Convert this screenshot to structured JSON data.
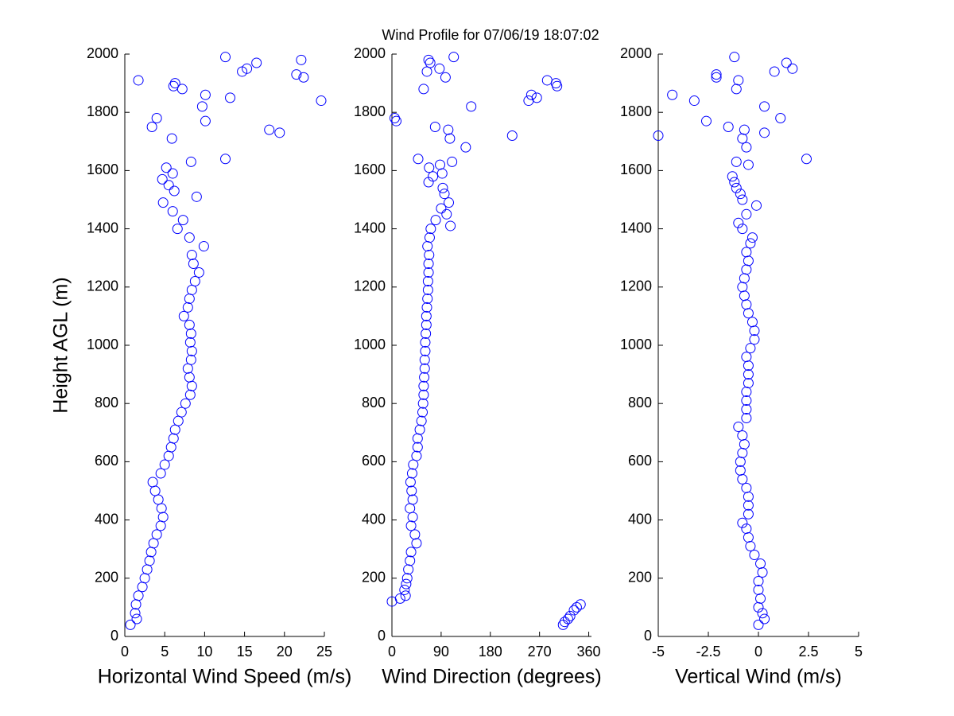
{
  "chart_data": [
    {
      "type": "scatter",
      "title": "Wind Profile for  07/06/19 18:07:02",
      "x_label": "Horizontal Wind Speed (m/s)",
      "y_label": "Height AGL (m)",
      "color": "#0000ff",
      "xlim": [
        0,
        25
      ],
      "xticks": [
        0,
        5,
        10,
        15,
        20,
        25
      ],
      "ylim": [
        0,
        2000
      ],
      "yticks": [
        0,
        200,
        400,
        600,
        800,
        1000,
        1200,
        1400,
        1600,
        1800,
        2000
      ],
      "x": [
        0.7,
        1.5,
        1.3,
        1.4,
        1.7,
        2.2,
        2.5,
        2.8,
        3.1,
        3.3,
        3.6,
        4.0,
        4.5,
        4.8,
        4.6,
        4.2,
        3.8,
        3.5,
        4.5,
        5.0,
        5.5,
        5.8,
        6.1,
        6.3,
        6.7,
        7.1,
        7.6,
        8.2,
        8.4,
        8.1,
        7.9,
        8.3,
        8.4,
        8.2,
        8.3,
        8.1,
        7.4,
        7.9,
        8.1,
        8.4,
        8.8,
        9.3,
        8.6,
        8.4,
        9.9,
        8.1,
        6.6,
        7.3,
        6.0,
        4.8,
        9.0,
        6.2,
        5.5,
        4.7,
        6.0,
        5.2,
        8.3,
        12.6,
        5.9,
        19.4,
        18.1,
        3.4,
        10.1,
        4.0,
        9.7,
        24.6,
        13.2,
        10.1,
        7.2,
        6.1,
        6.3,
        1.7,
        22.4,
        21.5,
        14.7,
        15.3,
        16.5,
        22.1,
        12.6
      ],
      "values": [
        40,
        60,
        80,
        110,
        140,
        170,
        200,
        230,
        260,
        290,
        320,
        350,
        380,
        410,
        440,
        470,
        500,
        530,
        560,
        590,
        620,
        650,
        680,
        710,
        740,
        770,
        800,
        830,
        860,
        890,
        920,
        950,
        980,
        1010,
        1040,
        1070,
        1100,
        1130,
        1160,
        1190,
        1220,
        1250,
        1280,
        1310,
        1340,
        1370,
        1400,
        1430,
        1460,
        1490,
        1510,
        1530,
        1550,
        1570,
        1590,
        1610,
        1630,
        1640,
        1710,
        1730,
        1740,
        1750,
        1770,
        1780,
        1820,
        1840,
        1850,
        1860,
        1880,
        1890,
        1900,
        1910,
        1920,
        1930,
        1940,
        1950,
        1970,
        1980,
        1990
      ]
    },
    {
      "type": "scatter",
      "x_label": "Wind Direction (degrees)",
      "color": "#0000ff",
      "xlim": [
        0,
        365
      ],
      "xticks": [
        0,
        90,
        180,
        270,
        360
      ],
      "ylim": [
        0,
        2000
      ],
      "yticks": [
        0,
        200,
        400,
        600,
        800,
        1000,
        1200,
        1400,
        1600,
        1800,
        2000
      ],
      "x": [
        313,
        316,
        322,
        326,
        333,
        338,
        345,
        0,
        15,
        25,
        23,
        26,
        28,
        30,
        33,
        35,
        45,
        42,
        35,
        38,
        33,
        38,
        36,
        34,
        37,
        39,
        45,
        47,
        47,
        51,
        54,
        56,
        57,
        58,
        58,
        59,
        60,
        60,
        61,
        61,
        62,
        63,
        63,
        64,
        65,
        66,
        66,
        67,
        67,
        68,
        65,
        69,
        71,
        107,
        80,
        100,
        90,
        104,
        96,
        93,
        67,
        75,
        92,
        68,
        88,
        110,
        48,
        135,
        106,
        220,
        103,
        79,
        8,
        5,
        145,
        250,
        265,
        255,
        58,
        302,
        300,
        284,
        98,
        64,
        87,
        70,
        67,
        113
      ],
      "values": [
        40,
        50,
        60,
        70,
        90,
        100,
        110,
        120,
        130,
        140,
        160,
        180,
        200,
        230,
        260,
        290,
        320,
        350,
        380,
        410,
        440,
        470,
        500,
        530,
        560,
        590,
        620,
        650,
        680,
        710,
        740,
        770,
        800,
        830,
        860,
        890,
        920,
        950,
        980,
        1010,
        1040,
        1070,
        1100,
        1130,
        1160,
        1190,
        1220,
        1250,
        1280,
        1310,
        1340,
        1370,
        1400,
        1410,
        1430,
        1450,
        1470,
        1490,
        1520,
        1540,
        1560,
        1580,
        1590,
        1610,
        1620,
        1630,
        1640,
        1680,
        1710,
        1720,
        1740,
        1750,
        1770,
        1780,
        1820,
        1840,
        1850,
        1860,
        1880,
        1890,
        1900,
        1910,
        1920,
        1940,
        1950,
        1970,
        1980,
        1990
      ]
    },
    {
      "type": "scatter",
      "x_label": "Vertical Wind (m/s)",
      "color": "#0000ff",
      "xlim": [
        -5,
        5
      ],
      "xticks": [
        -5,
        -2.5,
        0,
        2.5,
        5
      ],
      "ylim": [
        0,
        2000
      ],
      "yticks": [
        0,
        200,
        400,
        600,
        800,
        1000,
        1200,
        1400,
        1600,
        1800,
        2000
      ],
      "x": [
        0.0,
        0.3,
        0.2,
        0.0,
        0.1,
        0.0,
        0.0,
        0.2,
        0.1,
        -0.2,
        -0.4,
        -0.5,
        -0.6,
        -0.8,
        -0.5,
        -0.5,
        -0.5,
        -0.6,
        -0.8,
        -0.9,
        -0.9,
        -0.8,
        -0.7,
        -0.8,
        -1.0,
        -0.6,
        -0.6,
        -0.6,
        -0.6,
        -0.5,
        -0.5,
        -0.5,
        -0.6,
        -0.4,
        -0.2,
        -0.2,
        -0.3,
        -0.5,
        -0.6,
        -0.7,
        -0.8,
        -0.7,
        -0.6,
        -0.5,
        -0.6,
        -0.4,
        -0.3,
        -0.8,
        -1.0,
        -0.6,
        -0.1,
        -0.8,
        -0.9,
        -1.1,
        -1.2,
        -1.3,
        -0.5,
        -1.1,
        2.4,
        -0.6,
        -0.8,
        -5.0,
        0.3,
        -0.7,
        -1.5,
        -2.6,
        1.1,
        0.3,
        -3.2,
        -4.3,
        -1.1,
        -1.0,
        -2.1,
        -2.1,
        0.8,
        1.7,
        1.4,
        -1.2
      ],
      "values": [
        40,
        60,
        80,
        100,
        130,
        160,
        190,
        220,
        250,
        280,
        310,
        340,
        370,
        390,
        420,
        450,
        480,
        510,
        540,
        570,
        600,
        630,
        660,
        690,
        720,
        750,
        780,
        810,
        840,
        870,
        900,
        930,
        960,
        990,
        1020,
        1050,
        1080,
        1110,
        1140,
        1170,
        1200,
        1230,
        1260,
        1290,
        1320,
        1350,
        1370,
        1400,
        1420,
        1450,
        1480,
        1500,
        1520,
        1540,
        1560,
        1580,
        1620,
        1630,
        1640,
        1680,
        1710,
        1720,
        1730,
        1740,
        1750,
        1770,
        1780,
        1820,
        1840,
        1860,
        1880,
        1910,
        1920,
        1930,
        1940,
        1950,
        1970,
        1990
      ]
    }
  ]
}
